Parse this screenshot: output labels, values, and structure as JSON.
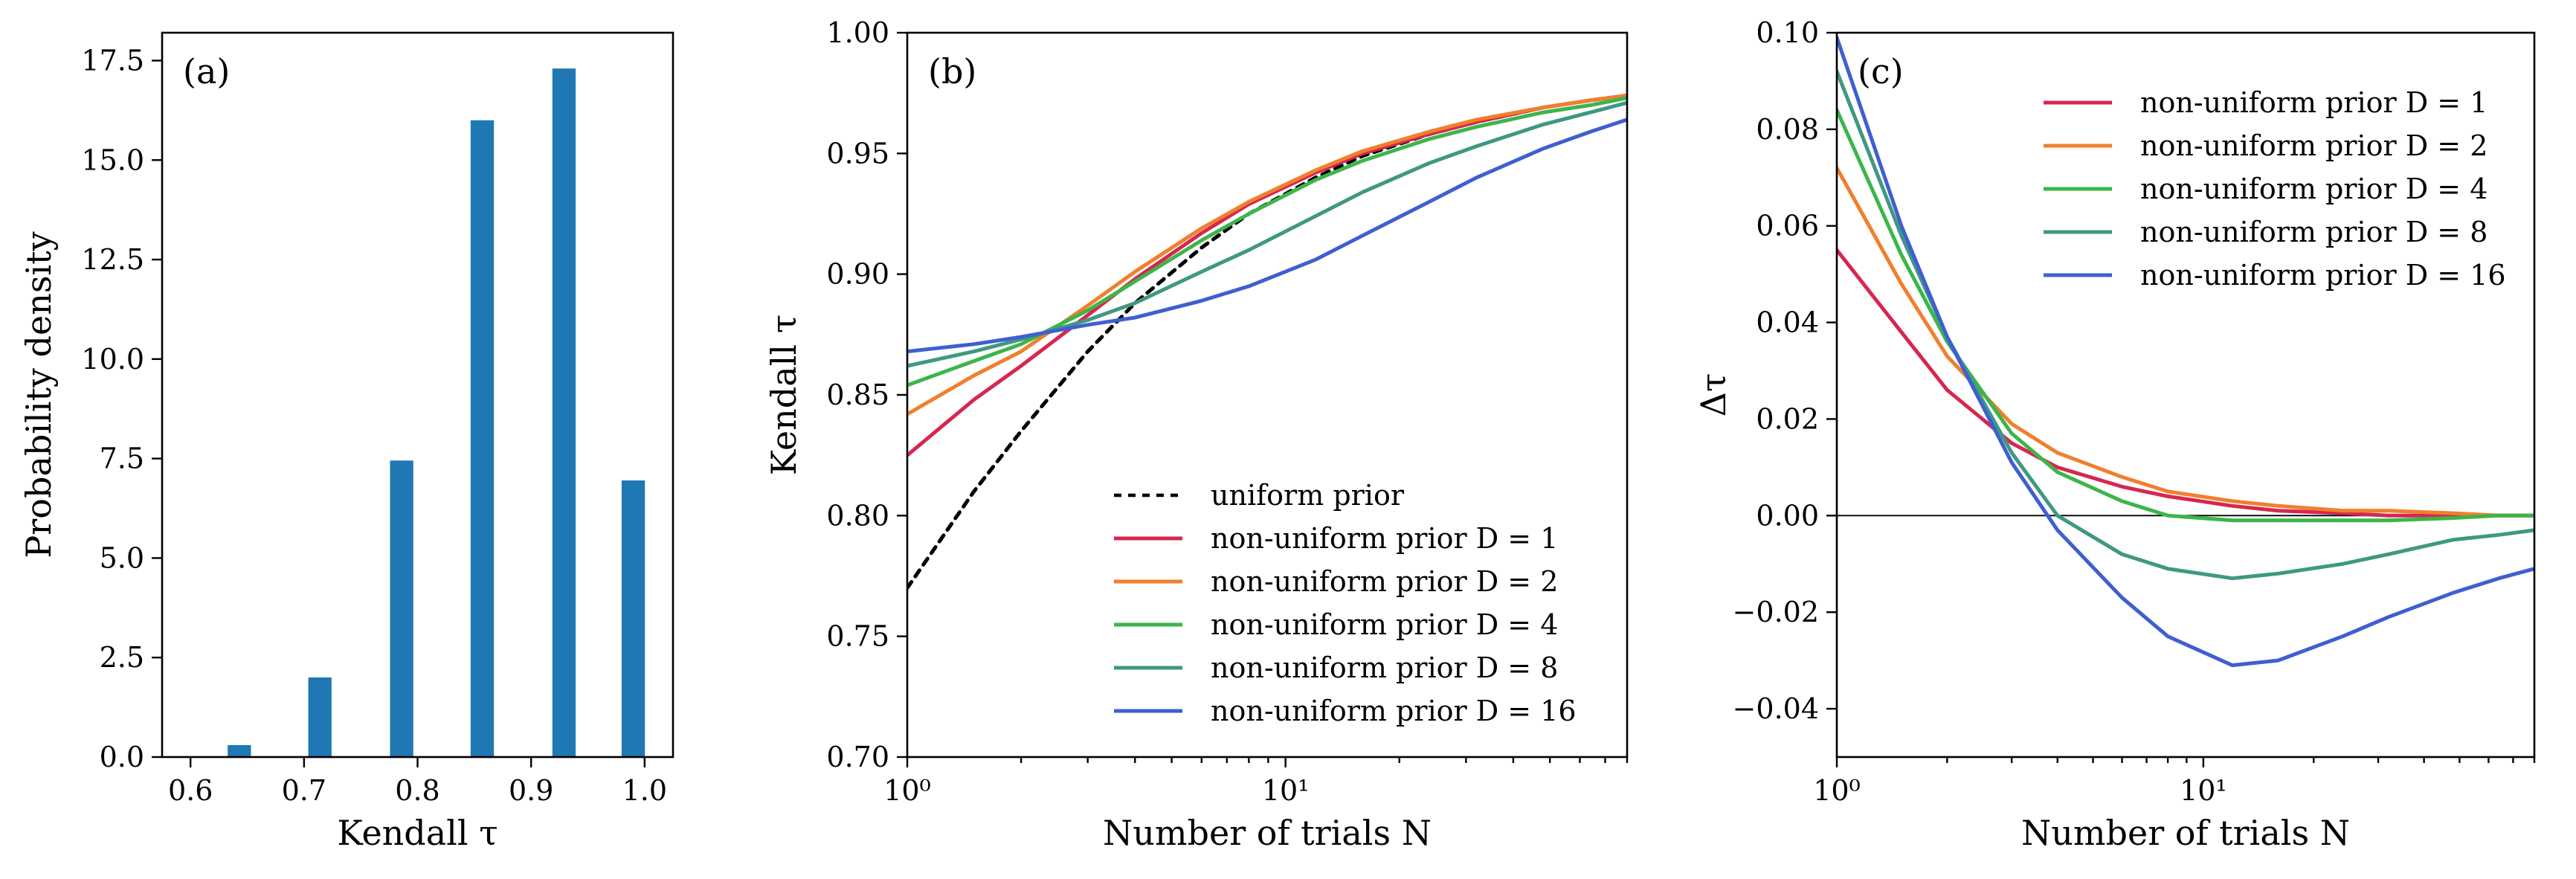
{
  "chart_data": [
    {
      "panel": "(a)",
      "type": "bar",
      "xlabel": "Kendall τ",
      "ylabel": "Probability density",
      "xlim": [
        0.575,
        1.025
      ],
      "ylim": [
        0,
        18.2
      ],
      "xticks": [
        0.6,
        0.7,
        0.8,
        0.9,
        1.0
      ],
      "xtick_labels": [
        "0.6",
        "0.7",
        "0.8",
        "0.9",
        "1.0"
      ],
      "yticks": [
        0,
        2.5,
        5,
        7.5,
        10,
        12.5,
        15,
        17.5
      ],
      "ytick_labels": [
        "0.0",
        "2.5",
        "5.0",
        "7.5",
        "10.0",
        "12.5",
        "15.0",
        "17.5"
      ],
      "bar_width": 0.0205,
      "color": "#1f77b4",
      "x": [
        0.643,
        0.714,
        0.786,
        0.857,
        0.929,
        0.99
      ],
      "values": [
        0.3,
        2.0,
        7.45,
        16.0,
        17.3,
        6.95
      ]
    },
    {
      "panel": "(b)",
      "type": "line",
      "xscale": "log",
      "xlabel": "Number of trials N",
      "ylabel": "Kendall τ",
      "xlim": [
        1,
        80
      ],
      "ylim": [
        0.7,
        1.0
      ],
      "xticks": [
        1,
        10
      ],
      "xtick_labels": [
        "10⁰",
        "10¹"
      ],
      "yticks": [
        0.7,
        0.75,
        0.8,
        0.85,
        0.9,
        0.95,
        1.0
      ],
      "ytick_labels": [
        "0.70",
        "0.75",
        "0.80",
        "0.85",
        "0.90",
        "0.95",
        "1.00"
      ],
      "legend": "lower-right",
      "series": [
        {
          "name": "uniform prior",
          "color": "#000000",
          "dashed": true,
          "x": [
            1,
            1.5,
            2,
            3,
            4,
            6,
            8,
            12,
            16,
            24,
            32,
            48,
            64,
            80
          ],
          "values": [
            0.77,
            0.81,
            0.835,
            0.868,
            0.888,
            0.911,
            0.925,
            0.94,
            0.949,
            0.958,
            0.963,
            0.969,
            0.972,
            0.974
          ]
        },
        {
          "name": "non-uniform prior D = 1",
          "color": "#d62750",
          "x": [
            1,
            1.5,
            2,
            3,
            4,
            6,
            8,
            12,
            16,
            24,
            32,
            48,
            64,
            80
          ],
          "values": [
            0.825,
            0.848,
            0.862,
            0.883,
            0.898,
            0.917,
            0.929,
            0.942,
            0.95,
            0.958,
            0.963,
            0.969,
            0.972,
            0.974
          ]
        },
        {
          "name": "non-uniform prior D = 2",
          "color": "#f07f2e",
          "x": [
            1,
            1.5,
            2,
            3,
            4,
            6,
            8,
            12,
            16,
            24,
            32,
            48,
            64,
            80
          ],
          "values": [
            0.842,
            0.858,
            0.868,
            0.887,
            0.901,
            0.919,
            0.93,
            0.943,
            0.951,
            0.959,
            0.964,
            0.969,
            0.972,
            0.974
          ]
        },
        {
          "name": "non-uniform prior D = 4",
          "color": "#3cb54a",
          "x": [
            1,
            1.5,
            2,
            3,
            4,
            6,
            8,
            12,
            16,
            24,
            32,
            48,
            64,
            80
          ],
          "values": [
            0.854,
            0.864,
            0.871,
            0.885,
            0.897,
            0.914,
            0.925,
            0.939,
            0.947,
            0.956,
            0.961,
            0.967,
            0.97,
            0.973
          ]
        },
        {
          "name": "non-uniform prior D = 8",
          "color": "#3f9882",
          "x": [
            1,
            1.5,
            2,
            3,
            4,
            6,
            8,
            12,
            16,
            24,
            32,
            48,
            64,
            80
          ],
          "values": [
            0.862,
            0.868,
            0.873,
            0.881,
            0.888,
            0.901,
            0.91,
            0.924,
            0.934,
            0.946,
            0.953,
            0.962,
            0.967,
            0.971
          ]
        },
        {
          "name": "non-uniform prior D = 16",
          "color": "#3f5fd0",
          "x": [
            1,
            1.5,
            2,
            3,
            4,
            6,
            8,
            12,
            16,
            24,
            32,
            48,
            64,
            80
          ],
          "values": [
            0.868,
            0.871,
            0.874,
            0.879,
            0.882,
            0.889,
            0.895,
            0.906,
            0.916,
            0.93,
            0.94,
            0.952,
            0.959,
            0.964
          ]
        }
      ]
    },
    {
      "panel": "(c)",
      "type": "line",
      "xscale": "log",
      "xlabel": "Number of trials N",
      "ylabel": "Δτ",
      "xlim": [
        1,
        80
      ],
      "ylim": [
        -0.05,
        0.1
      ],
      "xticks": [
        1,
        10
      ],
      "xtick_labels": [
        "10⁰",
        "10¹"
      ],
      "yticks": [
        -0.04,
        -0.02,
        0.0,
        0.02,
        0.04,
        0.06,
        0.08,
        0.1
      ],
      "ytick_labels": [
        "−0.04",
        "−0.02",
        "0.00",
        "0.02",
        "0.04",
        "0.06",
        "0.08",
        "0.10"
      ],
      "zero_line": true,
      "legend": "upper-right",
      "series": [
        {
          "name": "non-uniform prior D = 1",
          "color": "#d62750",
          "x": [
            1,
            1.5,
            2,
            3,
            4,
            6,
            8,
            12,
            16,
            24,
            32,
            48,
            64,
            80
          ],
          "values": [
            0.055,
            0.038,
            0.026,
            0.015,
            0.01,
            0.006,
            0.004,
            0.002,
            0.001,
            0.0005,
            0.0,
            0.0,
            0.0,
            0.0
          ]
        },
        {
          "name": "non-uniform prior D = 2",
          "color": "#f07f2e",
          "x": [
            1,
            1.5,
            2,
            3,
            4,
            6,
            8,
            12,
            16,
            24,
            32,
            48,
            64,
            80
          ],
          "values": [
            0.072,
            0.048,
            0.033,
            0.019,
            0.013,
            0.008,
            0.005,
            0.003,
            0.002,
            0.001,
            0.001,
            0.0005,
            0.0,
            0.0
          ]
        },
        {
          "name": "non-uniform prior D = 4",
          "color": "#3cb54a",
          "x": [
            1,
            1.5,
            2,
            3,
            4,
            6,
            8,
            12,
            16,
            24,
            32,
            48,
            64,
            80
          ],
          "values": [
            0.084,
            0.054,
            0.036,
            0.017,
            0.009,
            0.003,
            0.0,
            -0.001,
            -0.001,
            -0.001,
            -0.001,
            -0.0005,
            0.0,
            0.0
          ]
        },
        {
          "name": "non-uniform prior D = 8",
          "color": "#3f9882",
          "x": [
            1,
            1.5,
            2,
            3,
            4,
            6,
            8,
            12,
            16,
            24,
            32,
            48,
            64,
            80
          ],
          "values": [
            0.092,
            0.058,
            0.037,
            0.013,
            0.0,
            -0.008,
            -0.011,
            -0.013,
            -0.012,
            -0.01,
            -0.008,
            -0.005,
            -0.004,
            -0.003
          ]
        },
        {
          "name": "non-uniform prior D = 16",
          "color": "#3f5fd0",
          "x": [
            1,
            1.5,
            2,
            3,
            4,
            6,
            8,
            12,
            16,
            24,
            32,
            48,
            64,
            80
          ],
          "values": [
            0.099,
            0.06,
            0.037,
            0.011,
            -0.003,
            -0.017,
            -0.025,
            -0.031,
            -0.03,
            -0.025,
            -0.021,
            -0.016,
            -0.013,
            -0.011
          ]
        }
      ]
    }
  ]
}
